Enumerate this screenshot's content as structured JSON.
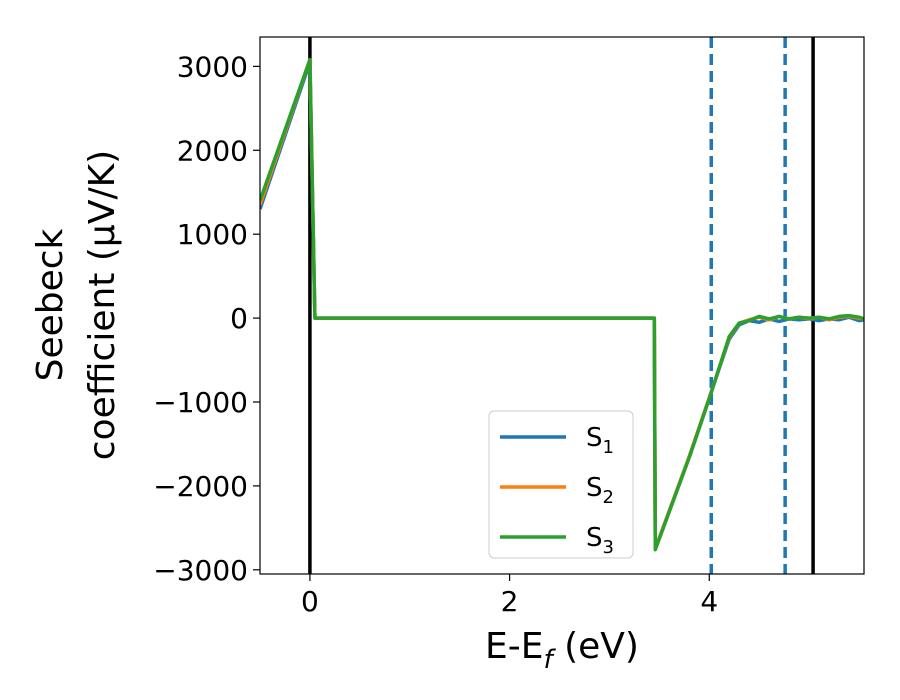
{
  "chart_data": {
    "type": "line",
    "xlabel": "E-E",
    "xlabel_sub": "f",
    "xlabel_unit": " (eV)",
    "ylabel_line1": "Seebeck",
    "ylabel_line2": "coefficient  (μV/K)",
    "xlim": [
      -0.5,
      5.55
    ],
    "ylim": [
      -3050,
      3350
    ],
    "xticks": [
      0,
      2,
      4
    ],
    "xtick_labels": [
      "0",
      "2",
      "4"
    ],
    "yticks": [
      3000,
      2000,
      1000,
      0,
      -1000,
      -2000,
      -3000
    ],
    "ytick_labels": [
      "3000",
      "2000",
      "1000",
      "0",
      "−1000",
      "−2000",
      "−3000"
    ],
    "grid": false,
    "legend_position": "lower-center",
    "series": [
      {
        "name": "S",
        "subscript": "1",
        "color": "#1f77b4",
        "x": [
          -0.5,
          0.0,
          0.05,
          3.45,
          3.46,
          3.8,
          4.0,
          4.2,
          4.3,
          4.4,
          4.5,
          4.6,
          4.7,
          4.8,
          4.9,
          5.0,
          5.1,
          5.2,
          5.3,
          5.4,
          5.5,
          5.55
        ],
        "y": [
          1300,
          3050,
          0,
          0,
          -2750,
          -1650,
          -950,
          -250,
          -80,
          -30,
          -50,
          -10,
          -40,
          -10,
          -20,
          -10,
          -30,
          -10,
          -20,
          10,
          -30,
          -20
        ]
      },
      {
        "name": "S",
        "subscript": "2",
        "color": "#ff7f0e",
        "x": [
          -0.5,
          0.0,
          0.05,
          3.45,
          3.46,
          3.8,
          4.0,
          4.2,
          4.3,
          4.4,
          4.5,
          4.6,
          4.7,
          4.8,
          4.9,
          5.0,
          5.1,
          5.2,
          5.3,
          5.4,
          5.5,
          5.55
        ],
        "y": [
          1350,
          3080,
          0,
          0,
          -2750,
          -1650,
          -950,
          -230,
          -60,
          -20,
          10,
          -20,
          20,
          -10,
          10,
          -10,
          10,
          -20,
          10,
          20,
          0,
          -10
        ]
      },
      {
        "name": "S",
        "subscript": "3",
        "color": "#2ca02c",
        "x": [
          -0.5,
          0.0,
          0.05,
          3.45,
          3.46,
          3.8,
          4.0,
          4.2,
          4.3,
          4.4,
          4.5,
          4.6,
          4.7,
          4.8,
          4.9,
          5.0,
          5.1,
          5.2,
          5.3,
          5.4,
          5.5,
          5.55
        ],
        "y": [
          1400,
          3080,
          0,
          0,
          -2760,
          -1660,
          -960,
          -220,
          -60,
          -30,
          20,
          -10,
          20,
          -10,
          10,
          0,
          10,
          -10,
          20,
          30,
          10,
          -10
        ]
      }
    ],
    "vlines": [
      {
        "x": 0.0,
        "style": "solid",
        "color": "#000000"
      },
      {
        "x": 4.02,
        "style": "dashed",
        "color": "#1f77b4"
      },
      {
        "x": 4.76,
        "style": "dashed",
        "color": "#1f77b4"
      },
      {
        "x": 5.04,
        "style": "solid",
        "color": "#000000"
      }
    ]
  }
}
